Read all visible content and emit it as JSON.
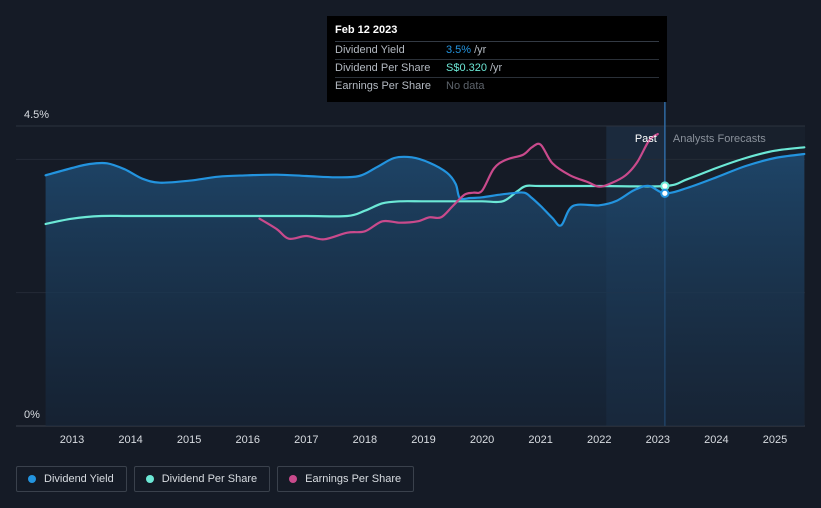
{
  "colors": {
    "dividend_yield": "#2394df",
    "dividend_per_share": "#6ce8d6",
    "earnings_per_share": "#c94a8c",
    "background": "#151b26"
  },
  "tooltip": {
    "date": "Feb 12 2023",
    "rows": [
      {
        "label": "Dividend Yield",
        "value": "3.5%",
        "unit": "/yr",
        "color": "#2394df"
      },
      {
        "label": "Dividend Per Share",
        "value": "S$0.320",
        "unit": "/yr",
        "color": "#6ce8d6"
      },
      {
        "label": "Earnings Per Share",
        "value": "No data",
        "unit": "",
        "color": "#5d636b"
      }
    ]
  },
  "regions": {
    "past": "Past",
    "forecast": "Analysts Forecasts"
  },
  "legend": [
    {
      "label": "Dividend Yield",
      "color": "#2394df"
    },
    {
      "label": "Dividend Per Share",
      "color": "#6ce8d6"
    },
    {
      "label": "Earnings Per Share",
      "color": "#c94a8c"
    }
  ],
  "chart_data": {
    "type": "line",
    "y_axis": {
      "min": 0,
      "max": 4.5,
      "tick_labels": [
        "4.5%",
        "0%"
      ]
    },
    "x_axis": {
      "min": 2012.55,
      "max": 2025.5,
      "tick_labels": [
        "2013",
        "2014",
        "2015",
        "2016",
        "2017",
        "2018",
        "2019",
        "2020",
        "2021",
        "2022",
        "2023",
        "2024",
        "2025"
      ]
    },
    "forecast_start": 2023.12,
    "highlight_start": 2022.12,
    "series": [
      {
        "name": "Dividend Yield",
        "unit": "%",
        "x": [
          2012.55,
          2013.0,
          2013.3,
          2013.6,
          2013.9,
          2014.2,
          2014.5,
          2015.0,
          2015.5,
          2016.0,
          2016.5,
          2017.0,
          2017.5,
          2017.9,
          2018.2,
          2018.5,
          2018.8,
          2019.1,
          2019.4,
          2019.55,
          2019.62,
          2019.8,
          2020.0,
          2020.3,
          2020.5,
          2020.72,
          2020.85,
          2021.0,
          2021.2,
          2021.35,
          2021.55,
          2022.0,
          2022.3,
          2022.6,
          2022.85,
          2023.12,
          2023.5,
          2024.0,
          2024.5,
          2025.0,
          2025.5
        ],
        "y": [
          3.76,
          3.87,
          3.93,
          3.94,
          3.85,
          3.71,
          3.65,
          3.68,
          3.74,
          3.76,
          3.77,
          3.75,
          3.73,
          3.75,
          3.88,
          4.02,
          4.03,
          3.95,
          3.8,
          3.63,
          3.42,
          3.42,
          3.43,
          3.47,
          3.49,
          3.5,
          3.42,
          3.3,
          3.12,
          3.01,
          3.3,
          3.31,
          3.38,
          3.54,
          3.6,
          3.49,
          3.57,
          3.73,
          3.9,
          4.02,
          4.08
        ]
      },
      {
        "name": "Dividend Per Share",
        "unit": "S$",
        "x": [
          2012.55,
          2013.0,
          2013.5,
          2014.0,
          2015.0,
          2016.0,
          2017.0,
          2017.7,
          2018.0,
          2018.3,
          2018.6,
          2019.0,
          2019.5,
          2020.0,
          2020.35,
          2020.6,
          2020.75,
          2021.0,
          2022.0,
          2023.12,
          2023.5,
          2024.0,
          2024.5,
          2025.0,
          2025.5
        ],
        "y": [
          3.03,
          3.11,
          3.15,
          3.15,
          3.15,
          3.15,
          3.15,
          3.15,
          3.23,
          3.34,
          3.37,
          3.37,
          3.37,
          3.37,
          3.37,
          3.52,
          3.6,
          3.6,
          3.6,
          3.6,
          3.7,
          3.87,
          4.02,
          4.13,
          4.18
        ]
      },
      {
        "name": "Earnings Per Share",
        "unit": "S$",
        "x": [
          2016.2,
          2016.5,
          2016.7,
          2017.0,
          2017.3,
          2017.7,
          2018.0,
          2018.3,
          2018.6,
          2018.9,
          2019.1,
          2019.3,
          2019.5,
          2019.7,
          2019.85,
          2020.0,
          2020.2,
          2020.4,
          2020.7,
          2020.85,
          2021.0,
          2021.2,
          2021.5,
          2021.8,
          2022.0,
          2022.2,
          2022.45,
          2022.65,
          2022.85,
          2023.0
        ],
        "y": [
          3.11,
          2.95,
          2.81,
          2.85,
          2.8,
          2.9,
          2.92,
          3.07,
          3.05,
          3.07,
          3.13,
          3.13,
          3.3,
          3.47,
          3.5,
          3.53,
          3.86,
          3.99,
          4.07,
          4.18,
          4.22,
          3.94,
          3.76,
          3.66,
          3.59,
          3.64,
          3.76,
          3.96,
          4.28,
          4.38
        ]
      }
    ],
    "markers": [
      {
        "series": "Dividend Per Share",
        "x": 2023.12,
        "y": 3.6
      },
      {
        "series": "Dividend Yield",
        "x": 2023.12,
        "y": 3.49
      }
    ]
  }
}
